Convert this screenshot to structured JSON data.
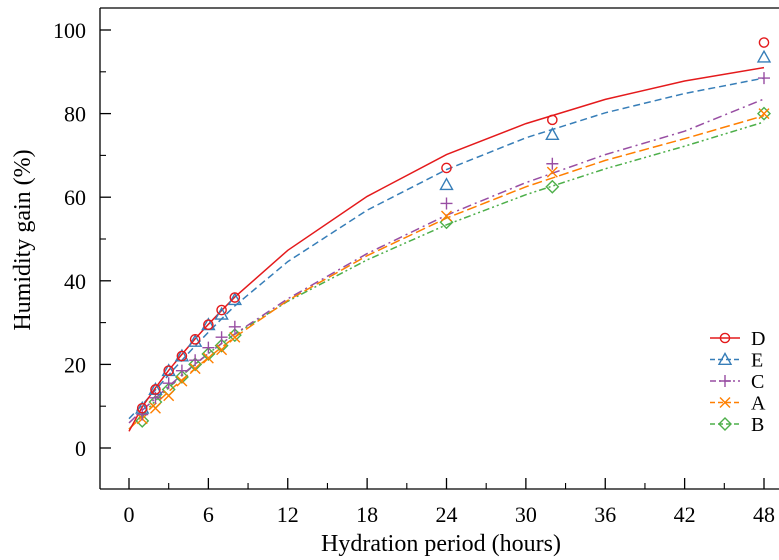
{
  "chart_data": {
    "type": "scatter",
    "xlabel": "Hydration period (hours)",
    "ylabel": "Humidity gain (%)",
    "xlim": [
      0,
      48
    ],
    "ylim": [
      0,
      100
    ],
    "xticks": [
      0,
      6,
      12,
      18,
      24,
      30,
      36,
      42,
      48
    ],
    "yticks": [
      0,
      20,
      40,
      60,
      80,
      100
    ],
    "grid": false,
    "legend_position": "bottom-right",
    "series": [
      {
        "name": "D",
        "color": "#e41a1c",
        "marker": "circle",
        "line": "solid",
        "points": [
          [
            1,
            9.5
          ],
          [
            2,
            14
          ],
          [
            3,
            18.5
          ],
          [
            4,
            22
          ],
          [
            5,
            26
          ],
          [
            6,
            29.5
          ],
          [
            7,
            33
          ],
          [
            8,
            36
          ],
          [
            24,
            67
          ],
          [
            32,
            78.5
          ],
          [
            48,
            97
          ]
        ],
        "fit": [
          [
            0,
            4
          ],
          [
            1,
            9.8
          ],
          [
            2,
            14.4
          ],
          [
            3,
            18.6
          ],
          [
            4,
            22.4
          ],
          [
            5,
            26.1
          ],
          [
            6,
            29.6
          ],
          [
            7,
            32.9
          ],
          [
            8,
            36.1
          ],
          [
            12,
            47.3
          ],
          [
            18,
            60.2
          ],
          [
            24,
            70.2
          ],
          [
            30,
            77.6
          ],
          [
            36,
            83.4
          ],
          [
            42,
            87.8
          ],
          [
            48,
            91
          ]
        ]
      },
      {
        "name": "E",
        "color": "#377eb8",
        "marker": "triangle",
        "line": "dashed",
        "points": [
          [
            1,
            9.5
          ],
          [
            2,
            14
          ],
          [
            3,
            18.5
          ],
          [
            4,
            22
          ],
          [
            5,
            25.5
          ],
          [
            6,
            29.5
          ],
          [
            7,
            32
          ],
          [
            8,
            35.5
          ],
          [
            24,
            63
          ],
          [
            32,
            75
          ],
          [
            48,
            93.5
          ]
        ],
        "fit": [
          [
            0,
            7
          ],
          [
            1,
            10.3
          ],
          [
            2,
            13.9
          ],
          [
            3,
            17.5
          ],
          [
            4,
            21
          ],
          [
            5,
            24.4
          ],
          [
            6,
            27.7
          ],
          [
            7,
            30.9
          ],
          [
            8,
            34
          ],
          [
            12,
            44.6
          ],
          [
            18,
            56.9
          ],
          [
            24,
            66.6
          ],
          [
            30,
            74.2
          ],
          [
            36,
            80.2
          ],
          [
            42,
            84.8
          ],
          [
            48,
            88.5
          ]
        ]
      },
      {
        "name": "C",
        "color": "#984ea3",
        "marker": "plus",
        "line": "dashdot",
        "points": [
          [
            1,
            8
          ],
          [
            2,
            12
          ],
          [
            3,
            15.5
          ],
          [
            4,
            18.5
          ],
          [
            5,
            21
          ],
          [
            6,
            24
          ],
          [
            7,
            26.5
          ],
          [
            8,
            29
          ],
          [
            24,
            58.5
          ],
          [
            32,
            68
          ],
          [
            48,
            88.5
          ]
        ],
        "fit": [
          [
            0,
            6
          ],
          [
            1,
            9
          ],
          [
            2,
            11.9
          ],
          [
            3,
            14.8
          ],
          [
            4,
            17.5
          ],
          [
            5,
            20.1
          ],
          [
            6,
            22.6
          ],
          [
            7,
            25
          ],
          [
            8,
            27.3
          ],
          [
            12,
            35.7
          ],
          [
            18,
            46.5
          ],
          [
            24,
            55.7
          ],
          [
            30,
            63.5
          ],
          [
            36,
            70.2
          ],
          [
            42,
            75.8
          ],
          [
            48,
            83.5
          ]
        ]
      },
      {
        "name": "A",
        "color": "#ff7f00",
        "marker": "x",
        "line": "longdash",
        "points": [
          [
            1,
            7
          ],
          [
            2,
            9.5
          ],
          [
            3,
            12.5
          ],
          [
            4,
            16
          ],
          [
            5,
            19
          ],
          [
            6,
            21.5
          ],
          [
            7,
            23.5
          ],
          [
            8,
            26.5
          ],
          [
            24,
            55.5
          ],
          [
            32,
            66
          ],
          [
            48,
            80
          ]
        ],
        "fit": [
          [
            0,
            4.5
          ],
          [
            1,
            7.6
          ],
          [
            2,
            10.6
          ],
          [
            3,
            13.5
          ],
          [
            4,
            16.3
          ],
          [
            5,
            19
          ],
          [
            6,
            21.6
          ],
          [
            7,
            24.1
          ],
          [
            8,
            26.5
          ],
          [
            12,
            35.3
          ],
          [
            18,
            46
          ],
          [
            24,
            55
          ],
          [
            30,
            62.5
          ],
          [
            36,
            68.8
          ],
          [
            42,
            74
          ],
          [
            48,
            79.5
          ]
        ]
      },
      {
        "name": "B",
        "color": "#4daf4a",
        "marker": "diamond",
        "line": "dashdotdot",
        "points": [
          [
            1,
            6.5
          ],
          [
            2,
            11
          ],
          [
            3,
            14
          ],
          [
            4,
            17
          ],
          [
            5,
            20
          ],
          [
            6,
            22.5
          ],
          [
            7,
            24.5
          ],
          [
            8,
            27
          ],
          [
            24,
            54
          ],
          [
            32,
            62.5
          ],
          [
            48,
            80
          ]
        ],
        "fit": [
          [
            0,
            4.5
          ],
          [
            1,
            8
          ],
          [
            2,
            11.3
          ],
          [
            3,
            14.4
          ],
          [
            4,
            17.3
          ],
          [
            5,
            20
          ],
          [
            6,
            22.6
          ],
          [
            7,
            25
          ],
          [
            8,
            27.2
          ],
          [
            12,
            35.1
          ],
          [
            18,
            45
          ],
          [
            24,
            53.4
          ],
          [
            30,
            60.6
          ],
          [
            36,
            66.8
          ],
          [
            42,
            72.2
          ],
          [
            48,
            78
          ]
        ]
      }
    ]
  }
}
